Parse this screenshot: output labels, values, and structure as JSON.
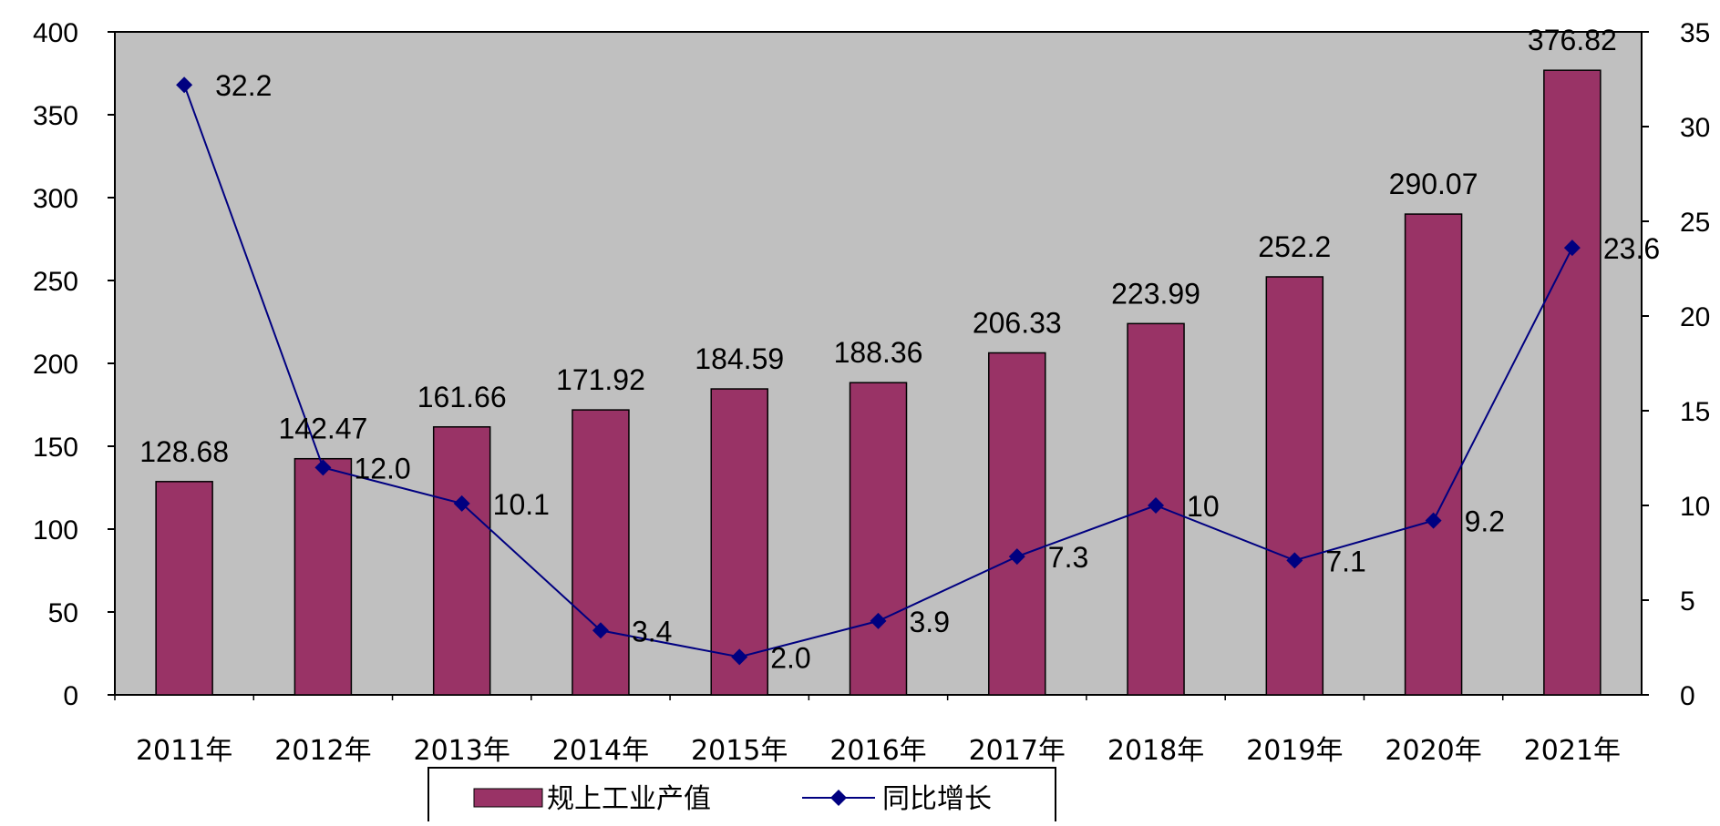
{
  "chart_data": {
    "type": "bar",
    "categories": [
      "2011年",
      "2012年",
      "2013年",
      "2014年",
      "2015年",
      "2016年",
      "2017年",
      "2018年",
      "2019年",
      "2020年",
      "2021年"
    ],
    "series": [
      {
        "name": "规上工业产值",
        "type": "bar",
        "axis": "left",
        "values": [
          128.68,
          142.47,
          161.66,
          171.92,
          184.59,
          188.36,
          206.33,
          223.99,
          252.2,
          290.07,
          376.82
        ],
        "labels": [
          "128.68",
          "142.47",
          "161.66",
          "171.92",
          "184.59",
          "188.36",
          "206.33",
          "223.99",
          "252.2",
          "290.07",
          "376.82"
        ],
        "color": "#993366"
      },
      {
        "name": "同比增长",
        "type": "line",
        "axis": "right",
        "values": [
          32.2,
          12.0,
          10.1,
          3.4,
          2.0,
          3.9,
          7.3,
          10,
          7.1,
          9.2,
          23.6
        ],
        "labels": [
          "32.2",
          "12.0",
          "10.1",
          "3.4",
          "2.0",
          "3.9",
          "7.3",
          "10",
          "7.1",
          "9.2",
          "23.6"
        ],
        "color": "#000080"
      }
    ],
    "y_left": {
      "ylim": [
        0,
        400
      ],
      "ticks": [
        "0",
        "50",
        "100",
        "150",
        "200",
        "250",
        "300",
        "350",
        "400"
      ]
    },
    "y_right": {
      "ylim": [
        0,
        35
      ],
      "ticks": [
        "0",
        "5",
        "10",
        "15",
        "20",
        "25",
        "30",
        "35"
      ]
    },
    "plot_background": "#c0c0c0",
    "grid": false,
    "legend": "bottom"
  }
}
